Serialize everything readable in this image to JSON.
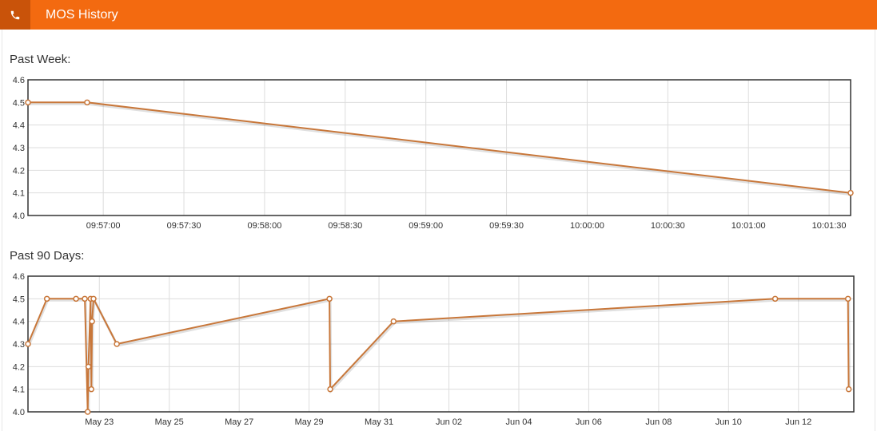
{
  "header": {
    "title": "MOS History",
    "icon": "phone-icon",
    "background_color": "#f36a10",
    "icon_box_color": "#c9530a"
  },
  "chart_data": [
    {
      "type": "line",
      "title": "Past Week:",
      "x_type": "time",
      "x": [
        "09:56:32",
        "09:56:54",
        "10:01:38"
      ],
      "values": [
        4.5,
        4.5,
        4.1
      ],
      "xlim": [
        "09:56:32",
        "10:01:38"
      ],
      "ylim": [
        4.0,
        4.6
      ],
      "x_ticks": [
        "09:57:00",
        "09:57:30",
        "09:58:00",
        "09:58:30",
        "09:59:00",
        "09:59:30",
        "10:00:00",
        "10:00:30",
        "10:01:00",
        "10:01:30"
      ],
      "y_ticks": [
        "4.0",
        "4.1",
        "4.2",
        "4.3",
        "4.4",
        "4.5",
        "4.6"
      ],
      "line_color": "#c8773a",
      "grid": true
    },
    {
      "type": "line",
      "title": "Past 90 Days:",
      "x_type": "date",
      "x": [
        "May 20 23:00",
        "May 21 12:00",
        "May 22 08:00",
        "May 22 14:00",
        "May 22 16:00",
        "May 22 16:30",
        "May 22 18:00",
        "May 22 18:30",
        "May 22 19:00",
        "May 22 20:00",
        "May 23 12:00",
        "May 29 14:00",
        "May 29 14:30",
        "May 31 10:00",
        "Jun 11 08:00",
        "Jun 13 10:00",
        "Jun 13 10:30"
      ],
      "values": [
        4.3,
        4.5,
        4.5,
        4.5,
        4.0,
        4.2,
        4.5,
        4.1,
        4.4,
        4.5,
        4.3,
        4.5,
        4.1,
        4.4,
        4.5,
        4.5,
        4.1
      ],
      "xlim": [
        "May 20 23:00",
        "Jun 13 14:00"
      ],
      "ylim": [
        4.0,
        4.6
      ],
      "x_ticks": [
        "May 23",
        "May 25",
        "May 27",
        "May 29",
        "May 31",
        "Jun 02",
        "Jun 04",
        "Jun 06",
        "Jun 08",
        "Jun 10",
        "Jun 12"
      ],
      "y_ticks": [
        "4.0",
        "4.1",
        "4.2",
        "4.3",
        "4.4",
        "4.5",
        "4.6"
      ],
      "line_color": "#c8773a",
      "grid": true
    }
  ]
}
